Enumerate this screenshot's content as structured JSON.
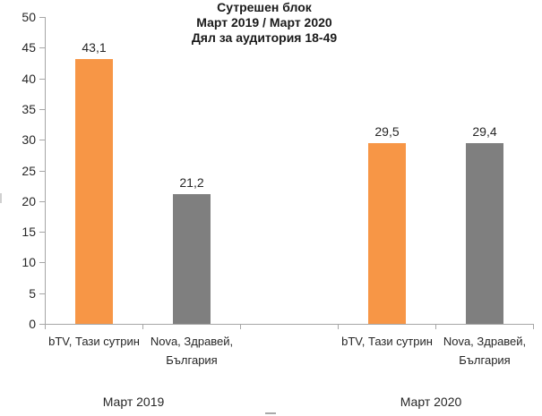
{
  "chart_data": {
    "type": "bar",
    "title_lines": [
      "Сутрешен блок",
      "Март 2019 / Март 2020",
      "Дял за аудитория 18-49"
    ],
    "ylabel": "",
    "xlabel": "",
    "ylim": [
      0,
      50
    ],
    "yticks": [
      0,
      5,
      10,
      15,
      20,
      25,
      30,
      35,
      40,
      45,
      50
    ],
    "grid": false,
    "legend_position": "bottom (clipped out of view)",
    "decimal_separator": ",",
    "groups": [
      {
        "label": "Март 2019",
        "bars": [
          {
            "series": "bTV",
            "category_lines": [
              "bTV, Тази сутрин"
            ],
            "value": 43.1,
            "value_label": "43,1",
            "color": "#F79646"
          },
          {
            "series": "Nova",
            "category_lines": [
              "Nova, Здравей,",
              "България"
            ],
            "value": 21.2,
            "value_label": "21,2",
            "color": "#7F7F7F"
          }
        ]
      },
      {
        "label": "Март 2020",
        "bars": [
          {
            "series": "bTV",
            "category_lines": [
              "bTV, Тази сутрин"
            ],
            "value": 29.5,
            "value_label": "29,5",
            "color": "#F79646"
          },
          {
            "series": "Nova",
            "category_lines": [
              "Nova, Здравей,",
              "България"
            ],
            "value": 29.4,
            "value_label": "29,4",
            "color": "#7F7F7F"
          }
        ]
      }
    ],
    "colors": {
      "btv_orange": "#F79646",
      "nova_gray": "#7F7F7F",
      "axis": "#A6A6A6",
      "text": "#262626"
    }
  }
}
